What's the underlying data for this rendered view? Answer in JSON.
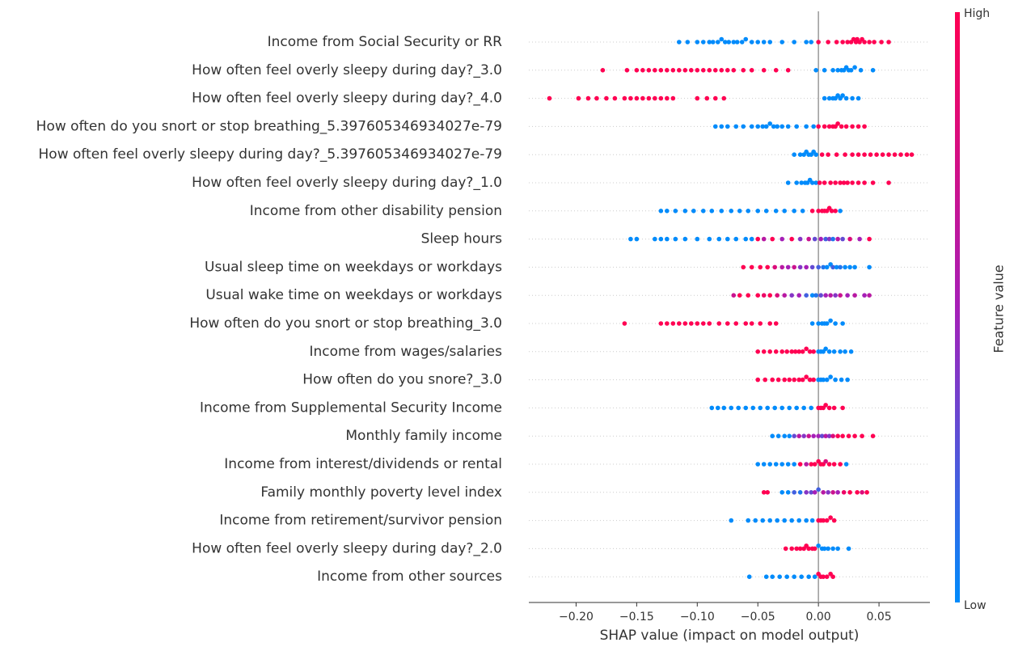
{
  "chart_data": {
    "type": "beeswarm",
    "xlabel": "SHAP value (impact on model output)",
    "xlim": [
      -0.239,
      0.092
    ],
    "xticks": [
      {
        "value": -0.2,
        "label": "−0.20"
      },
      {
        "value": -0.15,
        "label": "−0.15"
      },
      {
        "value": -0.1,
        "label": "−0.10"
      },
      {
        "value": -0.05,
        "label": "−0.05"
      },
      {
        "value": 0,
        "label": "0.00"
      },
      0.05
    ],
    "grid": true,
    "colorbar": {
      "label": "Feature value",
      "high": "High",
      "low": "Low",
      "colors": [
        "#008bfb",
        "#a61fb7",
        "#ff0052"
      ]
    },
    "rows": [
      {
        "name": "Income from Social Security or RR",
        "shap": [
          -0.115,
          -0.108,
          -0.1,
          -0.095,
          -0.09,
          -0.087,
          -0.083,
          -0.08,
          -0.077,
          -0.074,
          -0.07,
          -0.067,
          -0.063,
          -0.06,
          -0.055,
          -0.05,
          -0.045,
          -0.04,
          -0.03,
          -0.02,
          -0.01,
          -0.006,
          0.0,
          0.008,
          0.015,
          0.02,
          0.024,
          0.027,
          0.029,
          0.031,
          0.032,
          0.034,
          0.036,
          0.038,
          0.042,
          0.046,
          0.052,
          0.058
        ],
        "feature": [
          0,
          0,
          0,
          0,
          0,
          0,
          0,
          0,
          0,
          0,
          0,
          0,
          0,
          0,
          0,
          0,
          0,
          0,
          0,
          0,
          0,
          0,
          1,
          1,
          1,
          1,
          1,
          1,
          1,
          1,
          1,
          1,
          1,
          1,
          1,
          1,
          1,
          1
        ]
      },
      {
        "name": "How often feel overly sleepy during day?_3.0",
        "shap": [
          -0.178,
          -0.158,
          -0.15,
          -0.145,
          -0.14,
          -0.135,
          -0.13,
          -0.125,
          -0.12,
          -0.115,
          -0.11,
          -0.105,
          -0.1,
          -0.095,
          -0.09,
          -0.085,
          -0.08,
          -0.075,
          -0.07,
          -0.062,
          -0.055,
          -0.045,
          -0.035,
          -0.025,
          -0.002,
          0.005,
          0.012,
          0.016,
          0.019,
          0.021,
          0.023,
          0.025,
          0.027,
          0.03,
          0.035,
          0.045
        ],
        "feature": [
          1,
          1,
          1,
          1,
          1,
          1,
          1,
          1,
          1,
          1,
          1,
          1,
          1,
          1,
          1,
          1,
          1,
          1,
          1,
          1,
          1,
          1,
          1,
          1,
          0,
          0,
          0,
          0,
          0,
          0,
          0,
          0,
          0,
          0,
          0,
          0
        ]
      },
      {
        "name": "How often feel overly sleepy during day?_4.0",
        "shap": [
          -0.222,
          -0.198,
          -0.19,
          -0.183,
          -0.175,
          -0.168,
          -0.16,
          -0.155,
          -0.15,
          -0.145,
          -0.14,
          -0.135,
          -0.13,
          -0.125,
          -0.12,
          -0.1,
          -0.092,
          -0.085,
          -0.078,
          0.005,
          0.009,
          0.012,
          0.014,
          0.016,
          0.018,
          0.02,
          0.023,
          0.028,
          0.033
        ],
        "feature": [
          1,
          1,
          1,
          1,
          1,
          1,
          1,
          1,
          1,
          1,
          1,
          1,
          1,
          1,
          1,
          1,
          1,
          1,
          1,
          0,
          0,
          0,
          0,
          0,
          0,
          0,
          0,
          0,
          0
        ]
      },
      {
        "name": "How often do you snort or stop breathing_5.397605346934027e-79",
        "shap": [
          -0.085,
          -0.08,
          -0.075,
          -0.068,
          -0.062,
          -0.055,
          -0.05,
          -0.046,
          -0.043,
          -0.04,
          -0.037,
          -0.034,
          -0.03,
          -0.025,
          -0.018,
          -0.01,
          -0.004,
          0.0,
          0.005,
          0.009,
          0.012,
          0.014,
          0.016,
          0.019,
          0.023,
          0.028,
          0.033,
          0.038
        ],
        "feature": [
          0,
          0,
          0,
          0,
          0,
          0,
          0,
          0,
          0,
          0,
          0,
          0,
          0,
          0,
          0,
          0,
          0,
          1,
          1,
          1,
          1,
          1,
          1,
          1,
          1,
          1,
          1,
          1
        ]
      },
      {
        "name": "How often feel overly sleepy during day?_5.397605346934027e-79",
        "shap": [
          -0.02,
          -0.015,
          -0.012,
          -0.01,
          -0.008,
          -0.006,
          -0.004,
          -0.002,
          0.003,
          0.008,
          0.015,
          0.022,
          0.028,
          0.033,
          0.038,
          0.043,
          0.048,
          0.053,
          0.058,
          0.063,
          0.068,
          0.073,
          0.077
        ],
        "feature": [
          0,
          0,
          0,
          0,
          0,
          0,
          0,
          0,
          1,
          1,
          1,
          1,
          1,
          1,
          1,
          1,
          1,
          1,
          1,
          1,
          1,
          1,
          1
        ]
      },
      {
        "name": "How often feel overly sleepy during day?_1.0",
        "shap": [
          -0.025,
          -0.018,
          -0.014,
          -0.011,
          -0.009,
          -0.007,
          -0.005,
          -0.002,
          0.001,
          0.005,
          0.01,
          0.014,
          0.018,
          0.021,
          0.024,
          0.028,
          0.033,
          0.038,
          0.045,
          0.058
        ],
        "feature": [
          0,
          0,
          0,
          0,
          0,
          0,
          0,
          0,
          1,
          1,
          1,
          1,
          1,
          1,
          1,
          1,
          1,
          1,
          1,
          1
        ]
      },
      {
        "name": "Income from other disability pension",
        "shap": [
          -0.13,
          -0.125,
          -0.118,
          -0.11,
          -0.103,
          -0.095,
          -0.088,
          -0.08,
          -0.072,
          -0.065,
          -0.058,
          -0.05,
          -0.043,
          -0.035,
          -0.028,
          -0.02,
          -0.013,
          0.018,
          -0.005,
          0.0,
          0.003,
          0.005,
          0.007,
          0.009,
          0.011,
          0.014
        ],
        "feature": [
          0,
          0,
          0,
          0,
          0,
          0,
          0,
          0,
          0,
          0,
          0,
          0,
          0,
          0,
          0,
          0,
          0,
          0,
          1,
          1,
          1,
          1,
          1,
          1,
          1,
          1
        ]
      },
      {
        "name": "Sleep hours",
        "shap": [
          -0.155,
          -0.15,
          -0.135,
          -0.13,
          -0.125,
          -0.118,
          -0.11,
          -0.1,
          -0.09,
          -0.082,
          -0.075,
          -0.068,
          -0.06,
          -0.055,
          -0.05,
          -0.045,
          -0.038,
          -0.03,
          -0.022,
          -0.015,
          -0.008,
          -0.003,
          0.002,
          0.006,
          0.009,
          0.012,
          0.016,
          0.02,
          0.026,
          0.034,
          0.042
        ],
        "feature": [
          0,
          0,
          0,
          0,
          0,
          0,
          0,
          0,
          0,
          0,
          0,
          0,
          0,
          0,
          1,
          0.6,
          1,
          0.5,
          1,
          0.4,
          0.7,
          0.3,
          0.5,
          0.2,
          0.4,
          0.1,
          0.6,
          0.3,
          0.8,
          0.5,
          1
        ]
      },
      {
        "name": "Usual sleep time on weekdays or workdays",
        "shap": [
          -0.062,
          -0.055,
          -0.048,
          -0.042,
          -0.036,
          -0.03,
          -0.025,
          -0.02,
          -0.015,
          -0.01,
          -0.005,
          0.0,
          0.004,
          0.007,
          0.01,
          0.012,
          0.015,
          0.018,
          0.022,
          0.026,
          0.03,
          0.042
        ],
        "feature": [
          1,
          1,
          1,
          1,
          0.8,
          0.6,
          0.5,
          0.7,
          0.4,
          0.5,
          0.3,
          0.2,
          0.1,
          0,
          0,
          0.2,
          0,
          0.1,
          0,
          0,
          0,
          0
        ]
      },
      {
        "name": "Usual wake time on weekdays or workdays",
        "shap": [
          -0.07,
          -0.065,
          -0.058,
          -0.05,
          -0.045,
          -0.04,
          -0.034,
          -0.028,
          -0.022,
          -0.016,
          -0.01,
          -0.005,
          -0.002,
          0.002,
          0.006,
          0.01,
          0.014,
          0.018,
          0.024,
          0.03,
          0.038,
          0.042
        ],
        "feature": [
          0.7,
          1,
          1,
          1,
          0.9,
          1,
          0.8,
          0.6,
          0.4,
          0.5,
          0.2,
          0,
          0.1,
          0.3,
          0.5,
          0.6,
          0.4,
          0.7,
          0.5,
          0.6,
          0.5,
          0.6
        ]
      },
      {
        "name": "How often do you snort or stop breathing_3.0",
        "shap": [
          -0.16,
          -0.13,
          -0.125,
          -0.12,
          -0.115,
          -0.11,
          -0.105,
          -0.1,
          -0.095,
          -0.09,
          -0.082,
          -0.075,
          -0.068,
          -0.06,
          -0.055,
          -0.048,
          -0.04,
          -0.035,
          -0.005,
          0.0,
          0.003,
          0.005,
          0.007,
          0.01,
          0.014,
          0.02
        ],
        "feature": [
          1,
          1,
          1,
          1,
          1,
          1,
          1,
          1,
          1,
          1,
          1,
          1,
          1,
          1,
          1,
          1,
          1,
          1,
          0,
          0,
          0,
          0,
          0,
          0,
          0,
          0
        ]
      },
      {
        "name": "Income from wages/salaries",
        "shap": [
          -0.05,
          -0.045,
          -0.04,
          -0.035,
          -0.03,
          -0.026,
          -0.022,
          -0.019,
          -0.016,
          -0.013,
          -0.01,
          -0.007,
          -0.004,
          0.0,
          0.002,
          0.004,
          0.006,
          0.009,
          0.013,
          0.018,
          0.022,
          0.027
        ],
        "feature": [
          1,
          1,
          1,
          1,
          1,
          1,
          1,
          1,
          1,
          1,
          1,
          1,
          1,
          0,
          0,
          0,
          0,
          0,
          0,
          0,
          0,
          0
        ]
      },
      {
        "name": "How often do you snore?_3.0",
        "shap": [
          -0.05,
          -0.044,
          -0.038,
          -0.033,
          -0.028,
          -0.024,
          -0.02,
          -0.016,
          -0.013,
          -0.01,
          -0.007,
          -0.004,
          0.0,
          0.002,
          0.004,
          0.007,
          0.01,
          0.014,
          0.019,
          0.024
        ],
        "feature": [
          1,
          1,
          1,
          1,
          1,
          1,
          1,
          1,
          1,
          1,
          1,
          1,
          0,
          0,
          0,
          0,
          0,
          0,
          0,
          0
        ]
      },
      {
        "name": "Income from Supplemental Security Income",
        "shap": [
          -0.088,
          -0.083,
          -0.078,
          -0.072,
          -0.066,
          -0.06,
          -0.054,
          -0.048,
          -0.042,
          -0.036,
          -0.03,
          -0.024,
          -0.018,
          -0.012,
          -0.006,
          0.0,
          0.002,
          0.004,
          0.006,
          0.009,
          0.013,
          0.02
        ],
        "feature": [
          0,
          0,
          0,
          0,
          0,
          0,
          0,
          0,
          0,
          0,
          0,
          0,
          0,
          0,
          0,
          1,
          1,
          1,
          1,
          1,
          1,
          1
        ]
      },
      {
        "name": "Monthly family income",
        "shap": [
          -0.038,
          -0.033,
          -0.028,
          -0.024,
          -0.02,
          -0.016,
          -0.012,
          -0.008,
          -0.004,
          0.0,
          0.003,
          0.006,
          0.009,
          0.012,
          0.016,
          0.02,
          0.025,
          0.03,
          0.036,
          0.045
        ],
        "feature": [
          0,
          0,
          0,
          0,
          0.3,
          0.6,
          0.4,
          0.7,
          0.5,
          0.5,
          0.3,
          0.6,
          0.4,
          0.8,
          1,
          1,
          1,
          1,
          1,
          1
        ]
      },
      {
        "name": "Income from interest/dividends or rental",
        "shap": [
          -0.05,
          -0.045,
          -0.04,
          -0.035,
          -0.03,
          -0.025,
          -0.02,
          -0.015,
          -0.01,
          -0.006,
          -0.003,
          0.0,
          0.002,
          0.004,
          0.006,
          0.009,
          0.013,
          0.018,
          0.023
        ],
        "feature": [
          0,
          0,
          0,
          0,
          0,
          0,
          0,
          1,
          0.6,
          1,
          1,
          1,
          1,
          1,
          0.8,
          1,
          1,
          1,
          0
        ]
      },
      {
        "name": "Family monthly poverty level index",
        "shap": [
          -0.045,
          -0.042,
          -0.03,
          -0.025,
          -0.02,
          -0.015,
          -0.01,
          -0.006,
          -0.003,
          0.0,
          0.004,
          0.008,
          0.012,
          0.016,
          0.021,
          0.026,
          0.032,
          0.036,
          0.04
        ],
        "feature": [
          1,
          1,
          0,
          0,
          0.2,
          0.1,
          0.4,
          0.3,
          0.5,
          0.2,
          0.6,
          0.4,
          0.7,
          0.5,
          0.9,
          1,
          1,
          0.8,
          1
        ]
      },
      {
        "name": "Income from retirement/survivor pension",
        "shap": [
          -0.072,
          -0.058,
          -0.052,
          -0.046,
          -0.04,
          -0.034,
          -0.028,
          -0.022,
          -0.016,
          -0.01,
          -0.005,
          0.0,
          0.002,
          0.004,
          0.007,
          0.01,
          0.013
        ],
        "feature": [
          0,
          0,
          0,
          0,
          0,
          0,
          0,
          0,
          0,
          0,
          0,
          1,
          1,
          1,
          1,
          1,
          1
        ]
      },
      {
        "name": "How often feel overly sleepy during day?_2.0",
        "shap": [
          -0.027,
          -0.022,
          -0.018,
          -0.015,
          -0.012,
          -0.01,
          -0.008,
          -0.005,
          -0.003,
          0.0,
          0.003,
          0.005,
          0.008,
          0.012,
          0.016,
          0.025
        ],
        "feature": [
          1,
          1,
          1,
          1,
          1,
          1,
          1,
          1,
          1,
          0,
          0,
          0,
          0,
          0,
          0,
          0
        ]
      },
      {
        "name": "Income from other sources",
        "shap": [
          -0.057,
          -0.043,
          -0.038,
          -0.032,
          -0.026,
          -0.02,
          -0.014,
          -0.008,
          -0.003,
          0.0,
          0.002,
          0.004,
          0.007,
          0.01,
          0.012
        ],
        "feature": [
          0,
          0,
          0,
          0,
          0,
          0,
          0,
          0,
          0,
          1,
          1,
          1,
          1,
          1,
          1
        ]
      }
    ]
  }
}
